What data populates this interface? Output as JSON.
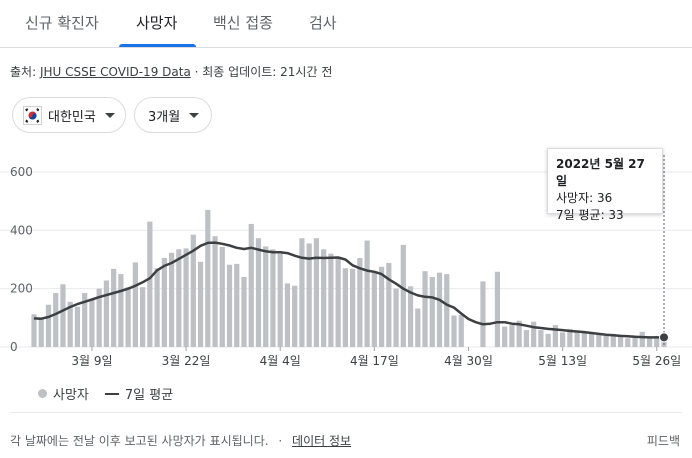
{
  "tabs": [
    {
      "label": "신규 확진자",
      "active": false
    },
    {
      "label": "사망자",
      "active": true
    },
    {
      "label": "백신 접종",
      "active": false
    },
    {
      "label": "검사",
      "active": false
    }
  ],
  "source": {
    "prefix": "출처: ",
    "link": "JHU CSSE COVID-19 Data",
    "suffix": " · 최종 업데이트: 21시간 전"
  },
  "filters": {
    "country": "대한민국",
    "country_icon": "korea-flag-icon",
    "period": "3개월"
  },
  "tooltip": {
    "date": "2022년 5월 27일",
    "deaths": "사망자: 36",
    "avg": "7일 평균: 33"
  },
  "legend": {
    "bars": "사망자",
    "line": "7일 평균"
  },
  "footer": {
    "note": "각 날짜에는 전날 이후 보고된 사망자가 표시됩니다.",
    "separator": "·",
    "link": "데이터 정보",
    "feedback": "피드백"
  },
  "colors": {
    "bar": "#bdc1c6",
    "line": "#3c4043",
    "active_tab": "#1a73e8"
  },
  "chart_data": {
    "type": "bar",
    "title": "",
    "xlabel": "",
    "ylabel": "",
    "ylim": [
      0,
      600
    ],
    "yticks": [
      0,
      200,
      400,
      600
    ],
    "grid": true,
    "legend_position": "bottom-left",
    "x_tick_labels": [
      "3월 9일",
      "3월 22일",
      "4월 4일",
      "4월 17일",
      "4월 30일",
      "5월 13일",
      "5월 26일"
    ],
    "x_tick_index": [
      8,
      21,
      34,
      47,
      60,
      73,
      86
    ],
    "highlight_index": 87,
    "series": [
      {
        "name": "사망자",
        "type": "bar",
        "values": [
          112,
          102,
          145,
          185,
          215,
          155,
          138,
          185,
          165,
          200,
          228,
          268,
          250,
          205,
          290,
          205,
          430,
          270,
          305,
          323,
          335,
          338,
          385,
          292,
          470,
          380,
          343,
          282,
          285,
          240,
          422,
          373,
          345,
          335,
          320,
          218,
          210,
          373,
          355,
          373,
          335,
          320,
          305,
          270,
          268,
          305,
          365,
          255,
          275,
          288,
          200,
          350,
          208,
          132,
          260,
          240,
          255,
          250,
          108,
          110,
          0,
          0,
          225,
          0,
          258,
          70,
          75,
          90,
          58,
          87,
          58,
          45,
          75,
          50,
          62,
          50,
          52,
          45,
          48,
          38,
          45,
          35,
          30,
          35,
          52,
          32,
          38,
          36
        ]
      },
      {
        "name": "7일 평균",
        "type": "line",
        "values": [
          98,
          97,
          103,
          113,
          125,
          137,
          147,
          155,
          163,
          171,
          178,
          185,
          192,
          200,
          210,
          222,
          236,
          263,
          278,
          288,
          302,
          316,
          330,
          347,
          357,
          358,
          354,
          348,
          340,
          336,
          340,
          334,
          328,
          325,
          325,
          322,
          313,
          306,
          303,
          306,
          305,
          306,
          307,
          300,
          280,
          270,
          262,
          258,
          250,
          232,
          217,
          200,
          187,
          177,
          172,
          170,
          162,
          145,
          135,
          115,
          96,
          85,
          78,
          80,
          85,
          85,
          80,
          78,
          73,
          68,
          65,
          62,
          60,
          58,
          55,
          53,
          51,
          48,
          45,
          42,
          40,
          38,
          37,
          35,
          34,
          33,
          33,
          33
        ]
      }
    ]
  }
}
